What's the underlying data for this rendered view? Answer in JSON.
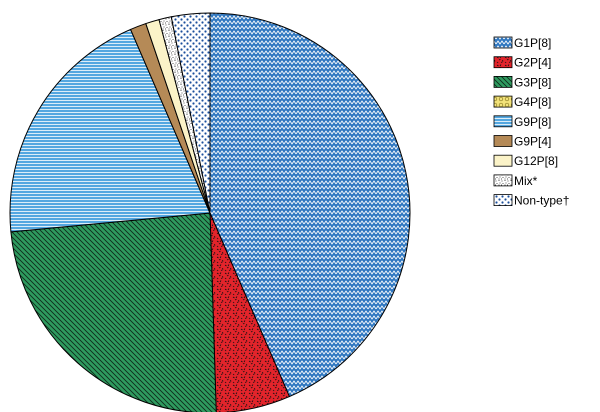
{
  "chart_data": {
    "type": "pie",
    "legend_position": "top-right",
    "slices": [
      {
        "label": "G1P[8]",
        "value": 43.5,
        "color": "#2f77c0",
        "pattern": "zigzag"
      },
      {
        "label": "G2P[4]",
        "value": 6.0,
        "color": "#e3242b",
        "pattern": "speckle"
      },
      {
        "label": "G3P[8]",
        "value": 24.0,
        "color": "#2e9b5f",
        "pattern": "diagonal"
      },
      {
        "label": "G4P[8]",
        "value": 0,
        "color": "#f2e27a",
        "pattern": "circles"
      },
      {
        "label": "G9P[8]",
        "value": 20.0,
        "color": "#54a7e0",
        "pattern": "horizontal"
      },
      {
        "label": "G9P[4]",
        "value": 1.3,
        "color": "#b58a57",
        "pattern": "solid"
      },
      {
        "label": "G12P[8]",
        "value": 1.1,
        "color": "#fbf3c8",
        "pattern": "solid"
      },
      {
        "label": "Mix*",
        "value": 1.0,
        "color": "#ffffff",
        "pattern": "stipple"
      },
      {
        "label": "Non-type†",
        "value": 3.1,
        "color": "#1b4f9c",
        "pattern": "dots"
      }
    ]
  }
}
